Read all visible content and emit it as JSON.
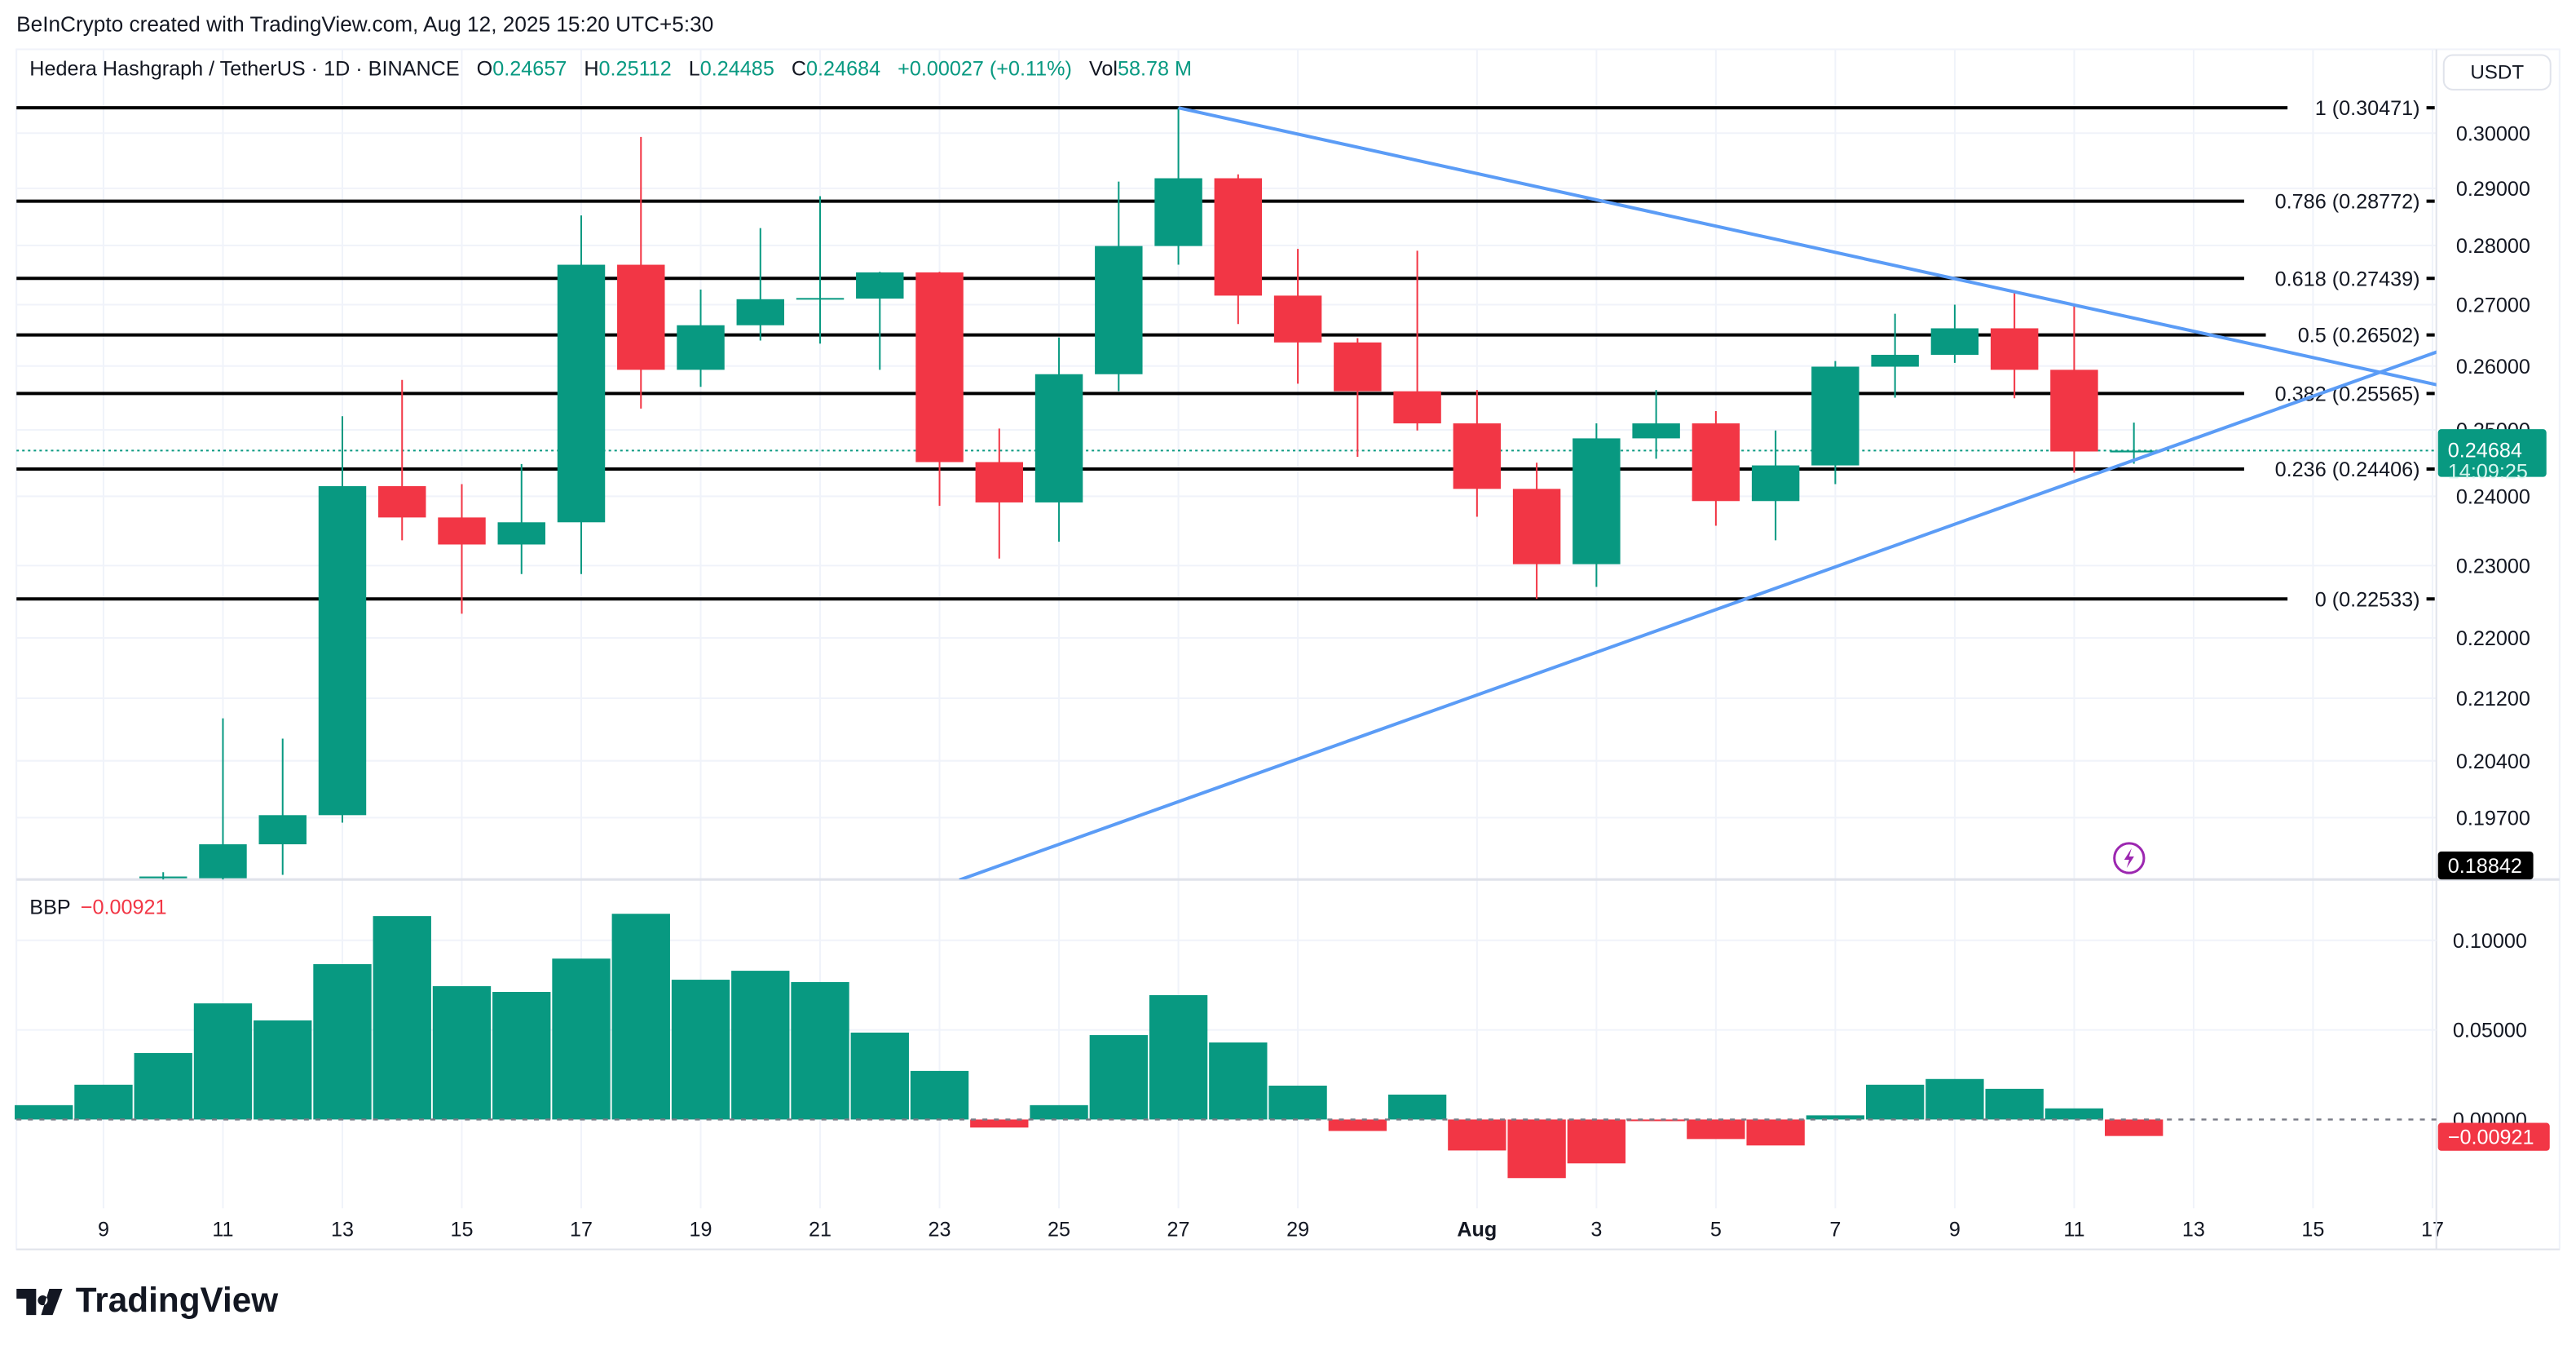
{
  "header": {
    "watermark": "BeInCrypto created with TradingView.com, Aug 12, 2025 15:20 UTC+5:30",
    "symbol": "Hedera Hashgraph / TetherUS · 1D · BINANCE",
    "o_label": "O",
    "o": "0.24657",
    "h_label": "H",
    "h": "0.25112",
    "l_label": "L",
    "l": "0.24485",
    "c_label": "C",
    "c": "0.24684",
    "change": "+0.00027 (+0.11%)",
    "vol_label": "Vol",
    "vol": "58.78 M",
    "currency_button": "USDT"
  },
  "logo": {
    "text": "TradingView"
  },
  "colors": {
    "up": "#089981",
    "down": "#f23645",
    "trendline": "#5b9cf6",
    "fib": "#000000",
    "alert_icon": "#9c27b0"
  },
  "icons": {
    "alert": "lightning-icon",
    "logo": "tradingview-logo-icon"
  },
  "chart_data": [
    {
      "type": "candlestick",
      "title": "Hedera Hashgraph / TetherUS · 1D · BINANCE",
      "y_scale": "log",
      "ylim": [
        0.1884,
        0.3085
      ],
      "grid": true,
      "y_ticks": [
        "0.30000",
        "0.29000",
        "0.28000",
        "0.27000",
        "0.26000",
        "0.25000",
        "0.24000",
        "0.23000",
        "0.22000",
        "0.21200",
        "0.20400",
        "0.19700"
      ],
      "x_ticks": [
        {
          "date": "2025-07-09",
          "label": "9"
        },
        {
          "date": "2025-07-11",
          "label": "11"
        },
        {
          "date": "2025-07-13",
          "label": "13"
        },
        {
          "date": "2025-07-15",
          "label": "15"
        },
        {
          "date": "2025-07-17",
          "label": "17"
        },
        {
          "date": "2025-07-19",
          "label": "19"
        },
        {
          "date": "2025-07-21",
          "label": "21"
        },
        {
          "date": "2025-07-23",
          "label": "23"
        },
        {
          "date": "2025-07-25",
          "label": "25"
        },
        {
          "date": "2025-07-27",
          "label": "27"
        },
        {
          "date": "2025-07-29",
          "label": "29"
        },
        {
          "date": "2025-08-01",
          "label": "Aug"
        },
        {
          "date": "2025-08-03",
          "label": "3"
        },
        {
          "date": "2025-08-05",
          "label": "5"
        },
        {
          "date": "2025-08-07",
          "label": "7"
        },
        {
          "date": "2025-08-09",
          "label": "9"
        },
        {
          "date": "2025-08-11",
          "label": "11"
        },
        {
          "date": "2025-08-13",
          "label": "13"
        },
        {
          "date": "2025-08-15",
          "label": "15"
        },
        {
          "date": "2025-08-17",
          "label": "17"
        }
      ],
      "columns": [
        "date",
        "open",
        "high",
        "low",
        "close"
      ],
      "candles": [
        [
          "2025-07-10",
          0.1898,
          0.1905,
          0.1893,
          0.19
        ],
        [
          "2025-07-11",
          0.1898,
          0.2094,
          0.1885,
          0.1938
        ],
        [
          "2025-07-12",
          0.1938,
          0.2068,
          0.1902,
          0.1973
        ],
        [
          "2025-07-13",
          0.1973,
          0.2521,
          0.1964,
          0.2415
        ],
        [
          "2025-07-14",
          0.2415,
          0.2578,
          0.2336,
          0.2369
        ],
        [
          "2025-07-15",
          0.2369,
          0.2418,
          0.2233,
          0.233
        ],
        [
          "2025-07-16",
          0.233,
          0.2448,
          0.2288,
          0.2362
        ],
        [
          "2025-07-17",
          0.2362,
          0.2852,
          0.2288,
          0.2767
        ],
        [
          "2025-07-18",
          0.2767,
          0.2993,
          0.2533,
          0.2594
        ],
        [
          "2025-07-19",
          0.2594,
          0.2725,
          0.2567,
          0.2666
        ],
        [
          "2025-07-20",
          0.2666,
          0.283,
          0.2641,
          0.2709
        ],
        [
          "2025-07-21",
          0.2709,
          0.2886,
          0.2636,
          0.2711
        ],
        [
          "2025-07-22",
          0.271,
          0.2755,
          0.2594,
          0.2754
        ],
        [
          "2025-07-23",
          0.2754,
          0.2755,
          0.2386,
          0.2451
        ],
        [
          "2025-07-24",
          0.2451,
          0.2502,
          0.231,
          0.2391
        ],
        [
          "2025-07-25",
          0.2391,
          0.2646,
          0.2334,
          0.2587
        ],
        [
          "2025-07-26",
          0.2587,
          0.2912,
          0.256,
          0.2799
        ],
        [
          "2025-07-27",
          0.2799,
          0.30471,
          0.2767,
          0.2918
        ],
        [
          "2025-07-28",
          0.2918,
          0.2925,
          0.2668,
          0.2715
        ],
        [
          "2025-07-29",
          0.2715,
          0.2794,
          0.2572,
          0.2638
        ],
        [
          "2025-07-30",
          0.2638,
          0.2645,
          0.2459,
          0.256
        ],
        [
          "2025-07-31",
          0.256,
          0.2791,
          0.2499,
          0.251
        ],
        [
          "2025-08-01",
          0.251,
          0.2562,
          0.237,
          0.2411
        ],
        [
          "2025-08-02",
          0.2411,
          0.245,
          0.22533,
          0.2302
        ],
        [
          "2025-08-03",
          0.2302,
          0.251,
          0.227,
          0.2487
        ],
        [
          "2025-08-04",
          0.2487,
          0.2562,
          0.2456,
          0.251
        ],
        [
          "2025-08-05",
          0.251,
          0.2529,
          0.2357,
          0.2393
        ],
        [
          "2025-08-06",
          0.2393,
          0.2499,
          0.2336,
          0.2446
        ],
        [
          "2025-08-07",
          0.2446,
          0.2608,
          0.2418,
          0.2599
        ],
        [
          "2025-08-08",
          0.2599,
          0.2685,
          0.255,
          0.2618
        ],
        [
          "2025-08-09",
          0.2618,
          0.27,
          0.2605,
          0.2661
        ],
        [
          "2025-08-10",
          0.2661,
          0.272,
          0.2549,
          0.2594
        ],
        [
          "2025-08-11",
          0.2594,
          0.2698,
          0.2435,
          0.2467
        ],
        [
          "2025-08-12",
          0.24657,
          0.25112,
          0.24485,
          0.24684
        ]
      ],
      "last_price": {
        "value": "0.24684",
        "countdown": "14:09:25"
      },
      "low_marker": "0.18842",
      "fib_levels": [
        {
          "ratio": "1",
          "price": 0.30471,
          "label": "1 (0.30471)"
        },
        {
          "ratio": "0.786",
          "price": 0.28772,
          "label": "0.786 (0.28772)"
        },
        {
          "ratio": "0.618",
          "price": 0.27439,
          "label": "0.618 (0.27439)"
        },
        {
          "ratio": "0.5",
          "price": 0.26502,
          "label": "0.5 (0.26502)"
        },
        {
          "ratio": "0.382",
          "price": 0.25565,
          "label": "0.382 (0.25565)"
        },
        {
          "ratio": "0.236",
          "price": 0.24406,
          "label": "0.236 (0.24406)"
        },
        {
          "ratio": "0",
          "price": 0.22533,
          "label": "0 (0.22533)"
        }
      ],
      "trendlines": [
        {
          "from": {
            "date": "2025-07-27",
            "price": 0.30471
          },
          "to": {
            "date": "2025-08-17T02:00",
            "price": 0.257
          }
        },
        {
          "from": {
            "date": "2025-07-23T08:00",
            "price": 0.1896
          },
          "to": {
            "date": "2025-08-17T02:00",
            "price": 0.2623
          }
        }
      ]
    },
    {
      "type": "bar",
      "title": "BBP",
      "current_value": "−0.00921",
      "current_label": "−0.00921",
      "y_ticks": [
        "0.10000",
        "0.05000",
        "0.00000"
      ],
      "ylim": [
        -0.072,
        0.135
      ],
      "dates": [
        "2025-07-08",
        "2025-07-09",
        "2025-07-10",
        "2025-07-11",
        "2025-07-12",
        "2025-07-13",
        "2025-07-14",
        "2025-07-15",
        "2025-07-16",
        "2025-07-17",
        "2025-07-18",
        "2025-07-19",
        "2025-07-20",
        "2025-07-21",
        "2025-07-22",
        "2025-07-23",
        "2025-07-24",
        "2025-07-25",
        "2025-07-26",
        "2025-07-27",
        "2025-07-28",
        "2025-07-29",
        "2025-07-30",
        "2025-07-31",
        "2025-08-01",
        "2025-08-02",
        "2025-08-03",
        "2025-08-04",
        "2025-08-05",
        "2025-08-06",
        "2025-08-07",
        "2025-08-08",
        "2025-08-09",
        "2025-08-10",
        "2025-08-11",
        "2025-08-12"
      ],
      "values": [
        0.008,
        0.0194,
        0.0371,
        0.0648,
        0.0553,
        0.0867,
        0.1135,
        0.0744,
        0.0712,
        0.0898,
        0.1148,
        0.078,
        0.083,
        0.0767,
        0.0485,
        0.0271,
        -0.0045,
        0.008,
        0.0471,
        0.0694,
        0.043,
        0.0189,
        -0.0064,
        0.0139,
        -0.0173,
        -0.0327,
        -0.0245,
        -0.0009,
        -0.0109,
        -0.0145,
        0.0023,
        0.0194,
        0.0226,
        0.0171,
        0.0062,
        -0.00921
      ]
    }
  ]
}
